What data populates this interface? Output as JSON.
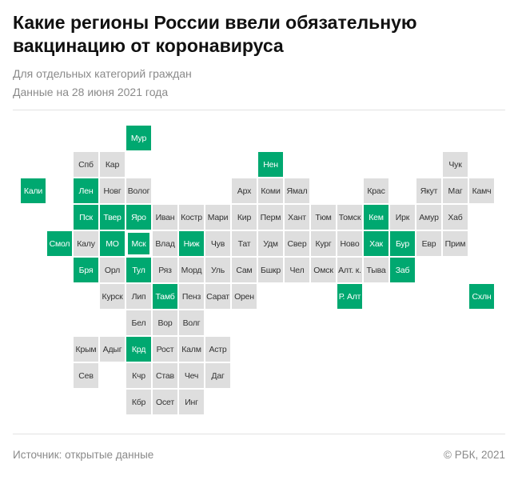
{
  "header": {
    "title": "Какие регионы России ввели обязательную вакцинацию от коронавируса",
    "subtitle": "Для отдельных категорий граждан",
    "date_note": "Данные на 28 июня 2021 года"
  },
  "colors": {
    "mandatory": "#00a870",
    "other": "#dedede"
  },
  "map": {
    "rows": [
      [
        null,
        null,
        null,
        null,
        {
          "n": "Мур",
          "on": true
        }
      ],
      [
        null,
        null,
        {
          "n": "Спб"
        },
        {
          "n": "Кар"
        },
        null,
        null,
        null,
        null,
        null,
        {
          "n": "Нен",
          "on": true
        },
        null,
        null,
        null,
        null,
        null,
        null,
        {
          "n": "Чук"
        }
      ],
      [
        {
          "n": "Кали",
          "on": true
        },
        null,
        {
          "n": "Лен",
          "on": true
        },
        {
          "n": "Новг"
        },
        {
          "n": "Волог"
        },
        null,
        null,
        null,
        {
          "n": "Арх"
        },
        {
          "n": "Коми"
        },
        {
          "n": "Ямал"
        },
        null,
        null,
        {
          "n": "Крас"
        },
        null,
        {
          "n": "Якут"
        },
        {
          "n": "Маг"
        },
        {
          "n": "Камч"
        }
      ],
      [
        null,
        null,
        {
          "n": "Пск",
          "on": true
        },
        {
          "n": "Твер",
          "on": true
        },
        {
          "n": "Яро",
          "on": true
        },
        {
          "n": "Иван"
        },
        {
          "n": "Костр"
        },
        {
          "n": "Мари"
        },
        {
          "n": "Кир"
        },
        {
          "n": "Перм"
        },
        {
          "n": "Хант"
        },
        {
          "n": "Тюм"
        },
        {
          "n": "Томск"
        },
        {
          "n": "Кем",
          "on": true
        },
        {
          "n": "Ирк"
        },
        {
          "n": "Амур"
        },
        {
          "n": "Хаб"
        }
      ],
      [
        null,
        {
          "n": "Смол",
          "on": true
        },
        {
          "n": "Калу"
        },
        {
          "n": "МО",
          "on": true
        },
        {
          "n": "Мск",
          "on": true,
          "capital": true
        },
        {
          "n": "Влад"
        },
        {
          "n": "Ниж",
          "on": true
        },
        {
          "n": "Чув"
        },
        {
          "n": "Тат"
        },
        {
          "n": "Удм"
        },
        {
          "n": "Свер"
        },
        {
          "n": "Кург"
        },
        {
          "n": "Ново"
        },
        {
          "n": "Хак",
          "on": true
        },
        {
          "n": "Бур",
          "on": true
        },
        {
          "n": "Евр"
        },
        {
          "n": "Прим"
        }
      ],
      [
        null,
        null,
        {
          "n": "Бря",
          "on": true
        },
        {
          "n": "Орл"
        },
        {
          "n": "Тул",
          "on": true
        },
        {
          "n": "Ряз"
        },
        {
          "n": "Морд"
        },
        {
          "n": "Уль"
        },
        {
          "n": "Сам"
        },
        {
          "n": "Бшкр"
        },
        {
          "n": "Чел"
        },
        {
          "n": "Омск"
        },
        {
          "n": "Алт. к."
        },
        {
          "n": "Тыва"
        },
        {
          "n": "Заб",
          "on": true
        }
      ],
      [
        null,
        null,
        null,
        {
          "n": "Курск"
        },
        {
          "n": "Лип"
        },
        {
          "n": "Тамб",
          "on": true
        },
        {
          "n": "Пенз"
        },
        {
          "n": "Сарат"
        },
        {
          "n": "Орен"
        },
        null,
        null,
        null,
        {
          "n": "Р. Алт",
          "on": true
        },
        null,
        null,
        null,
        null,
        {
          "n": "Схлн",
          "on": true
        }
      ],
      [
        null,
        null,
        null,
        null,
        {
          "n": "Бел"
        },
        {
          "n": "Вор"
        },
        {
          "n": "Волг"
        }
      ],
      [
        null,
        null,
        {
          "n": "Крым"
        },
        {
          "n": "Адыг"
        },
        {
          "n": "Крд",
          "on": true
        },
        {
          "n": "Рост"
        },
        {
          "n": "Калм"
        },
        {
          "n": "Астр"
        }
      ],
      [
        null,
        null,
        {
          "n": "Сев"
        },
        null,
        {
          "n": "Кчр"
        },
        {
          "n": "Став"
        },
        {
          "n": "Чеч"
        },
        {
          "n": "Даг"
        }
      ],
      [
        null,
        null,
        null,
        null,
        {
          "n": "Кбр"
        },
        {
          "n": "Осет"
        },
        {
          "n": "Инг"
        }
      ]
    ]
  },
  "footer": {
    "source": "Источник:  открытые данные",
    "copyright": "©  РБК, 2021"
  }
}
